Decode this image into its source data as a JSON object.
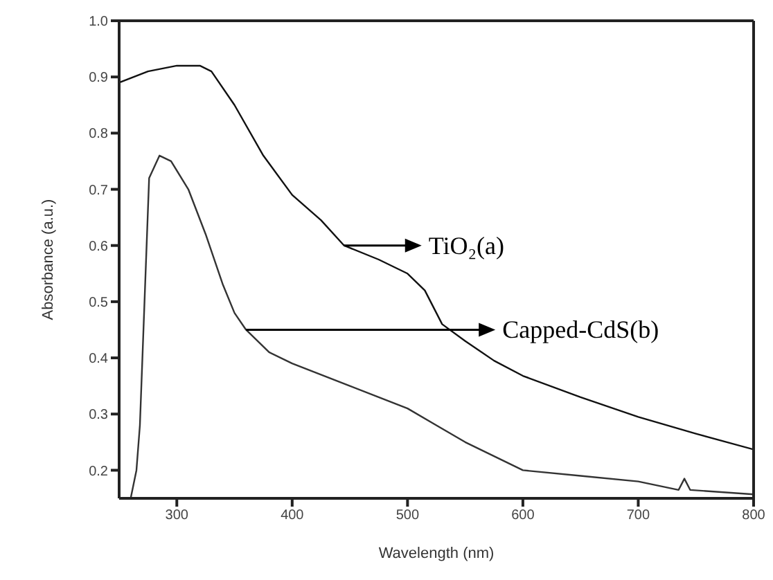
{
  "chart_data": {
    "type": "line",
    "xlabel": "Wavelength (nm)",
    "ylabel": "Absorbance (a.u.)",
    "xlim": [
      250,
      800
    ],
    "xticks": [
      300,
      400,
      500,
      600,
      700,
      800
    ],
    "ylim": [
      0.15,
      1.0
    ],
    "yticks": [
      0.2,
      0.3,
      0.4,
      0.5,
      0.6,
      0.7,
      0.8,
      0.9,
      {
        "value": 1.0,
        "label": "1.0"
      }
    ],
    "marker": "none",
    "line_style": "solid",
    "series": [
      {
        "color": "#111111",
        "x": [
          250,
          275,
          300,
          320,
          330,
          350,
          375,
          400,
          425,
          445,
          475,
          500,
          515,
          530,
          550,
          575,
          600,
          650,
          700,
          750,
          800
        ],
        "values": [
          0.89,
          0.91,
          0.92,
          0.92,
          0.91,
          0.85,
          0.76,
          0.69,
          0.645,
          0.6,
          0.575,
          0.55,
          0.52,
          0.46,
          0.43,
          0.395,
          0.368,
          0.33,
          0.295,
          0.265,
          0.237
        ]
      },
      {
        "color": "#333333",
        "x": [
          260,
          265,
          268,
          272,
          276,
          285,
          295,
          310,
          325,
          340,
          350,
          360,
          380,
          400,
          450,
          475,
          500,
          525,
          550,
          575,
          600,
          650,
          700,
          735,
          740,
          745,
          800
        ],
        "values": [
          0.15,
          0.2,
          0.28,
          0.5,
          0.72,
          0.76,
          0.75,
          0.7,
          0.62,
          0.53,
          0.48,
          0.45,
          0.41,
          0.39,
          0.35,
          0.33,
          0.31,
          0.28,
          0.25,
          0.225,
          0.2,
          0.19,
          0.18,
          0.165,
          0.185,
          0.165,
          0.157
        ]
      }
    ],
    "annotations": [
      {
        "text": "TiO₂(a)",
        "x": 445,
        "y": 0.6
      },
      {
        "text": "Capped-CdS(b)",
        "x": 360,
        "y": 0.45
      }
    ]
  }
}
